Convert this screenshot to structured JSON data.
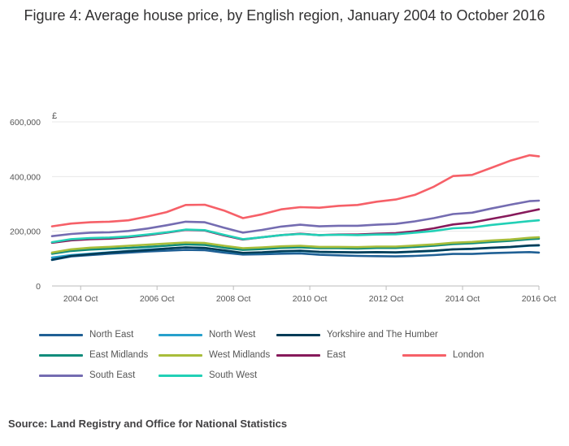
{
  "chart_data": {
    "type": "line",
    "title": "Figure 4: Average house price, by English region, January 2004 to October 2016",
    "ylabel": "£",
    "xlabel": "",
    "ylim": [
      0,
      600000
    ],
    "yticks": [
      0,
      200000,
      400000,
      600000
    ],
    "ytick_labels": [
      "0",
      "200,000",
      "400,000",
      "600,000"
    ],
    "xlim": [
      "2004-01",
      "2016-10"
    ],
    "xticks": [
      "2004-10",
      "2006-10",
      "2008-10",
      "2010-10",
      "2012-10",
      "2014-10",
      "2016-10"
    ],
    "xtick_labels": [
      "2004 Oct",
      "2006 Oct",
      "2008 Oct",
      "2010 Oct",
      "2012 Oct",
      "2014 Oct",
      "2016 Oct"
    ],
    "grid": "horizontal",
    "legend_position": "bottom",
    "series": [
      {
        "name": "North East",
        "color": "#206095",
        "points": [
          [
            "2004-01",
            95000
          ],
          [
            "2004-07",
            108000
          ],
          [
            "2005-01",
            113000
          ],
          [
            "2005-07",
            118000
          ],
          [
            "2006-01",
            122000
          ],
          [
            "2006-07",
            126000
          ],
          [
            "2007-01",
            129000
          ],
          [
            "2007-07",
            132000
          ],
          [
            "2008-01",
            131000
          ],
          [
            "2008-07",
            122000
          ],
          [
            "2009-01",
            115000
          ],
          [
            "2009-07",
            116000
          ],
          [
            "2010-01",
            118000
          ],
          [
            "2010-07",
            119000
          ],
          [
            "2011-01",
            114000
          ],
          [
            "2011-07",
            112000
          ],
          [
            "2012-01",
            110000
          ],
          [
            "2012-07",
            109000
          ],
          [
            "2013-01",
            108000
          ],
          [
            "2013-07",
            110000
          ],
          [
            "2014-01",
            113000
          ],
          [
            "2014-07",
            117000
          ],
          [
            "2015-01",
            117000
          ],
          [
            "2015-07",
            120000
          ],
          [
            "2016-01",
            122000
          ],
          [
            "2016-07",
            124000
          ],
          [
            "2016-10",
            122000
          ]
        ]
      },
      {
        "name": "North West",
        "color": "#27a0cc",
        "points": [
          [
            "2004-01",
            104000
          ],
          [
            "2004-07",
            113000
          ],
          [
            "2005-01",
            118000
          ],
          [
            "2005-07",
            123000
          ],
          [
            "2006-01",
            128000
          ],
          [
            "2006-07",
            133000
          ],
          [
            "2007-01",
            137000
          ],
          [
            "2007-07",
            141000
          ],
          [
            "2008-01",
            139000
          ],
          [
            "2008-07",
            129000
          ],
          [
            "2009-01",
            120000
          ],
          [
            "2009-07",
            122000
          ],
          [
            "2010-01",
            126000
          ],
          [
            "2010-07",
            128000
          ],
          [
            "2011-01",
            124000
          ],
          [
            "2011-07",
            123000
          ],
          [
            "2012-01",
            122000
          ],
          [
            "2012-07",
            123000
          ],
          [
            "2013-01",
            122000
          ],
          [
            "2013-07",
            125000
          ],
          [
            "2014-01",
            128000
          ],
          [
            "2014-07",
            134000
          ],
          [
            "2015-01",
            135000
          ],
          [
            "2015-07",
            139000
          ],
          [
            "2016-01",
            142000
          ],
          [
            "2016-07",
            147000
          ],
          [
            "2016-10",
            148000
          ]
        ]
      },
      {
        "name": "Yorkshire and The Humber",
        "color": "#003c57",
        "points": [
          [
            "2004-01",
            96000
          ],
          [
            "2004-07",
            110000
          ],
          [
            "2005-01",
            116000
          ],
          [
            "2005-07",
            122000
          ],
          [
            "2006-01",
            127000
          ],
          [
            "2006-07",
            131000
          ],
          [
            "2007-01",
            137000
          ],
          [
            "2007-07",
            141000
          ],
          [
            "2008-01",
            139000
          ],
          [
            "2008-07",
            130000
          ],
          [
            "2009-01",
            121000
          ],
          [
            "2009-07",
            123000
          ],
          [
            "2010-01",
            127000
          ],
          [
            "2010-07",
            129000
          ],
          [
            "2011-01",
            125000
          ],
          [
            "2011-07",
            124000
          ],
          [
            "2012-01",
            123000
          ],
          [
            "2012-07",
            124000
          ],
          [
            "2013-01",
            123000
          ],
          [
            "2013-07",
            126000
          ],
          [
            "2014-01",
            129000
          ],
          [
            "2014-07",
            134000
          ],
          [
            "2015-01",
            136000
          ],
          [
            "2015-07",
            140000
          ],
          [
            "2016-01",
            143000
          ],
          [
            "2016-07",
            148000
          ],
          [
            "2016-10",
            149000
          ]
        ]
      },
      {
        "name": "East Midlands",
        "color": "#118c7b",
        "points": [
          [
            "2004-01",
            118000
          ],
          [
            "2004-07",
            128000
          ],
          [
            "2005-01",
            133000
          ],
          [
            "2005-07",
            136000
          ],
          [
            "2006-01",
            139000
          ],
          [
            "2006-07",
            143000
          ],
          [
            "2007-01",
            147000
          ],
          [
            "2007-07",
            152000
          ],
          [
            "2008-01",
            150000
          ],
          [
            "2008-07",
            140000
          ],
          [
            "2009-01",
            132000
          ],
          [
            "2009-07",
            135000
          ],
          [
            "2010-01",
            139000
          ],
          [
            "2010-07",
            141000
          ],
          [
            "2011-01",
            138000
          ],
          [
            "2011-07",
            138000
          ],
          [
            "2012-01",
            137000
          ],
          [
            "2012-07",
            139000
          ],
          [
            "2013-01",
            139000
          ],
          [
            "2013-07",
            143000
          ],
          [
            "2014-01",
            147000
          ],
          [
            "2014-07",
            153000
          ],
          [
            "2015-01",
            156000
          ],
          [
            "2015-07",
            161000
          ],
          [
            "2016-01",
            165000
          ],
          [
            "2016-07",
            171000
          ],
          [
            "2016-10",
            173000
          ]
        ]
      },
      {
        "name": "West Midlands",
        "color": "#a8bd3a",
        "points": [
          [
            "2004-01",
            122000
          ],
          [
            "2004-07",
            134000
          ],
          [
            "2005-01",
            140000
          ],
          [
            "2005-07",
            143000
          ],
          [
            "2006-01",
            147000
          ],
          [
            "2006-07",
            151000
          ],
          [
            "2007-01",
            155000
          ],
          [
            "2007-07",
            159000
          ],
          [
            "2008-01",
            157000
          ],
          [
            "2008-07",
            147000
          ],
          [
            "2009-01",
            138000
          ],
          [
            "2009-07",
            141000
          ],
          [
            "2010-01",
            145000
          ],
          [
            "2010-07",
            147000
          ],
          [
            "2011-01",
            143000
          ],
          [
            "2011-07",
            143000
          ],
          [
            "2012-01",
            142000
          ],
          [
            "2012-07",
            144000
          ],
          [
            "2013-01",
            144000
          ],
          [
            "2013-07",
            148000
          ],
          [
            "2014-01",
            152000
          ],
          [
            "2014-07",
            158000
          ],
          [
            "2015-01",
            161000
          ],
          [
            "2015-07",
            166000
          ],
          [
            "2016-01",
            170000
          ],
          [
            "2016-07",
            176000
          ],
          [
            "2016-10",
            178000
          ]
        ]
      },
      {
        "name": "East",
        "color": "#871a5b",
        "points": [
          [
            "2004-01",
            158000
          ],
          [
            "2004-07",
            167000
          ],
          [
            "2005-01",
            171000
          ],
          [
            "2005-07",
            173000
          ],
          [
            "2006-01",
            178000
          ],
          [
            "2006-07",
            186000
          ],
          [
            "2007-01",
            195000
          ],
          [
            "2007-07",
            205000
          ],
          [
            "2008-01",
            203000
          ],
          [
            "2008-07",
            185000
          ],
          [
            "2009-01",
            170000
          ],
          [
            "2009-07",
            178000
          ],
          [
            "2010-01",
            186000
          ],
          [
            "2010-07",
            191000
          ],
          [
            "2011-01",
            186000
          ],
          [
            "2011-07",
            188000
          ],
          [
            "2012-01",
            188000
          ],
          [
            "2012-07",
            191000
          ],
          [
            "2013-01",
            193000
          ],
          [
            "2013-07",
            200000
          ],
          [
            "2014-01",
            211000
          ],
          [
            "2014-07",
            225000
          ],
          [
            "2015-01",
            232000
          ],
          [
            "2015-07",
            245000
          ],
          [
            "2016-01",
            258000
          ],
          [
            "2016-07",
            273000
          ],
          [
            "2016-10",
            280000
          ]
        ]
      },
      {
        "name": "London",
        "color": "#f66068",
        "points": [
          [
            "2004-01",
            218000
          ],
          [
            "2004-07",
            228000
          ],
          [
            "2005-01",
            233000
          ],
          [
            "2005-07",
            235000
          ],
          [
            "2006-01",
            240000
          ],
          [
            "2006-07",
            254000
          ],
          [
            "2007-01",
            270000
          ],
          [
            "2007-07",
            296000
          ],
          [
            "2008-01",
            297000
          ],
          [
            "2008-07",
            276000
          ],
          [
            "2009-01",
            248000
          ],
          [
            "2009-07",
            262000
          ],
          [
            "2010-01",
            280000
          ],
          [
            "2010-07",
            288000
          ],
          [
            "2011-01",
            286000
          ],
          [
            "2011-07",
            293000
          ],
          [
            "2012-01",
            296000
          ],
          [
            "2012-07",
            308000
          ],
          [
            "2013-01",
            316000
          ],
          [
            "2013-07",
            333000
          ],
          [
            "2014-01",
            363000
          ],
          [
            "2014-07",
            402000
          ],
          [
            "2015-01",
            406000
          ],
          [
            "2015-07",
            432000
          ],
          [
            "2016-01",
            458000
          ],
          [
            "2016-07",
            478000
          ],
          [
            "2016-10",
            474000
          ]
        ]
      },
      {
        "name": "South East",
        "color": "#746cb1",
        "points": [
          [
            "2004-01",
            182000
          ],
          [
            "2004-07",
            190000
          ],
          [
            "2005-01",
            195000
          ],
          [
            "2005-07",
            196000
          ],
          [
            "2006-01",
            201000
          ],
          [
            "2006-07",
            210000
          ],
          [
            "2007-01",
            222000
          ],
          [
            "2007-07",
            235000
          ],
          [
            "2008-01",
            233000
          ],
          [
            "2008-07",
            213000
          ],
          [
            "2009-01",
            195000
          ],
          [
            "2009-07",
            205000
          ],
          [
            "2010-01",
            217000
          ],
          [
            "2010-07",
            224000
          ],
          [
            "2011-01",
            218000
          ],
          [
            "2011-07",
            220000
          ],
          [
            "2012-01",
            220000
          ],
          [
            "2012-07",
            224000
          ],
          [
            "2013-01",
            227000
          ],
          [
            "2013-07",
            236000
          ],
          [
            "2014-01",
            248000
          ],
          [
            "2014-07",
            263000
          ],
          [
            "2015-01",
            268000
          ],
          [
            "2015-07",
            283000
          ],
          [
            "2016-01",
            297000
          ],
          [
            "2016-07",
            310000
          ],
          [
            "2016-10",
            312000
          ]
        ]
      },
      {
        "name": "South West",
        "color": "#22d0b6",
        "points": [
          [
            "2004-01",
            160000
          ],
          [
            "2004-07",
            171000
          ],
          [
            "2005-01",
            175000
          ],
          [
            "2005-07",
            177000
          ],
          [
            "2006-01",
            181000
          ],
          [
            "2006-07",
            188000
          ],
          [
            "2007-01",
            196000
          ],
          [
            "2007-07",
            206000
          ],
          [
            "2008-01",
            204000
          ],
          [
            "2008-07",
            187000
          ],
          [
            "2009-01",
            171000
          ],
          [
            "2009-07",
            178000
          ],
          [
            "2010-01",
            186000
          ],
          [
            "2010-07",
            190000
          ],
          [
            "2011-01",
            186000
          ],
          [
            "2011-07",
            187000
          ],
          [
            "2012-01",
            186000
          ],
          [
            "2012-07",
            188000
          ],
          [
            "2013-01",
            189000
          ],
          [
            "2013-07",
            195000
          ],
          [
            "2014-01",
            201000
          ],
          [
            "2014-07",
            211000
          ],
          [
            "2015-01",
            214000
          ],
          [
            "2015-07",
            223000
          ],
          [
            "2016-01",
            230000
          ],
          [
            "2016-07",
            237000
          ],
          [
            "2016-10",
            240000
          ]
        ]
      }
    ]
  },
  "source_text": "Source: Land Registry and Office for National Statistics"
}
